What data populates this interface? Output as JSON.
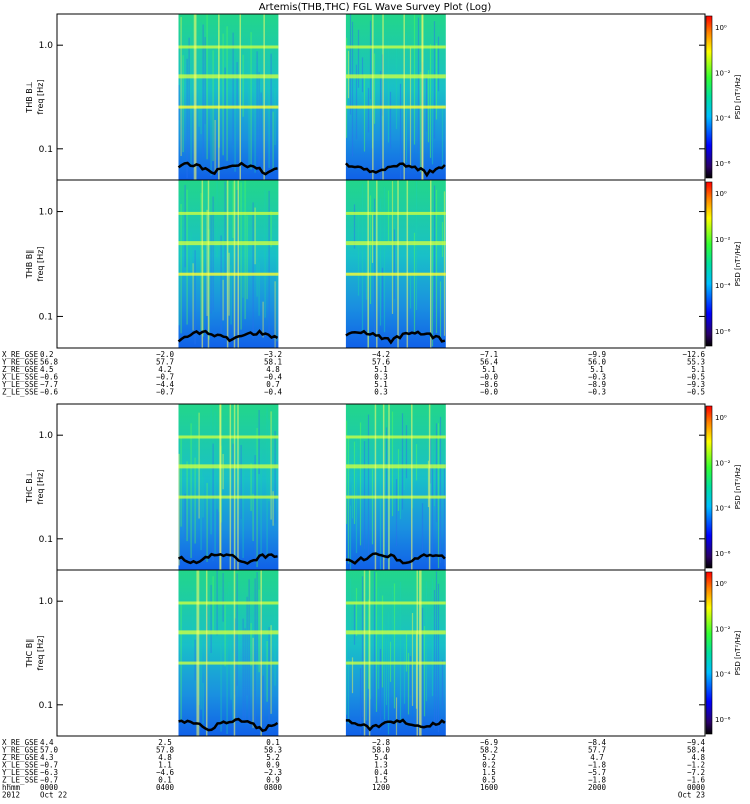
{
  "chart_data": {
    "type": "heatmap",
    "title": "Artemis(THB,THC) FGL Wave Survey Plot (Log)",
    "x_range_hhmm": [
      0,
      2400
    ],
    "panels": [
      {
        "name": "THB B⊥",
        "ylabel": "freq [Hz]",
        "cblabel": "PSD [nT²/Hz]",
        "ylim": [
          0.05,
          2.0
        ],
        "yscale": "log"
      },
      {
        "name": "THB B∥",
        "ylabel": "freq [Hz]",
        "cblabel": "PSD [nT²/Hz]",
        "ylim": [
          0.05,
          2.0
        ],
        "yscale": "log"
      },
      {
        "name": "THC B⊥",
        "ylabel": "freq [Hz]",
        "cblabel": "PSD [nT²/Hz]",
        "ylim": [
          0.05,
          2.0
        ],
        "yscale": "log"
      },
      {
        "name": "THC B∥",
        "ylabel": "freq [Hz]",
        "cblabel": "PSD [nT²/Hz]",
        "ylim": [
          0.05,
          2.0
        ],
        "yscale": "log"
      }
    ],
    "y_ticks": [
      "1.0",
      "0.1"
    ],
    "colorbar_ticks": [
      "10⁰",
      "10⁻²",
      "10⁻⁴",
      "10⁻⁶"
    ],
    "data_intervals_hours": [
      [
        4.5,
        8.2
      ],
      [
        10.7,
        14.4
      ]
    ],
    "thb_table": {
      "rows": [
        {
          "label": "X_RE_GSE",
          "values": [
            "0.2",
            "−2.0",
            "−3.2",
            "−4.2",
            "−7.1",
            "−9.9",
            "−12.6"
          ]
        },
        {
          "label": "Y_RE_GSE",
          "values": [
            "56.8",
            "57.7",
            "58.1",
            "57.6",
            "56.4",
            "56.0",
            "55.3"
          ]
        },
        {
          "label": "Z_RE_GSE",
          "values": [
            "4.5",
            "4.2",
            "4.8",
            "5.1",
            "5.1",
            "5.1",
            "5.1"
          ]
        },
        {
          "label": "X_LE_SSE",
          "values": [
            "−0.6",
            "−0.7",
            "−0.4",
            "0.3",
            "−0.0",
            "−0.3",
            "−0.5"
          ]
        },
        {
          "label": "Y_LE_SSE",
          "values": [
            "−7.7",
            "−4.4",
            "0.7",
            "5.1",
            "−8.6",
            "−8.9",
            "−9.3"
          ]
        },
        {
          "label": "Z_LE_SSE",
          "values": [
            "−0.6",
            "−0.7",
            "−0.4",
            "0.3",
            "−0.0",
            "−0.3",
            "−0.5"
          ]
        }
      ]
    },
    "thc_table": {
      "rows": [
        {
          "label": "X_RE_GSE",
          "values": [
            "4.4",
            "2.5",
            "0.1",
            "−2.8",
            "−6.9",
            "−8.4",
            "−9.4"
          ]
        },
        {
          "label": "Y_RE_GSE",
          "values": [
            "57.0",
            "57.8",
            "58.3",
            "58.0",
            "58.2",
            "57.7",
            "58.4"
          ]
        },
        {
          "label": "Z_RE_GSE",
          "values": [
            "4.3",
            "4.8",
            "5.2",
            "5.4",
            "5.2",
            "4.7",
            "4.8"
          ]
        },
        {
          "label": "X_LE_SSE",
          "values": [
            "−0.7",
            "1.1",
            "0.9",
            "1.3",
            "0.2",
            "−1.8",
            "−1.2"
          ]
        },
        {
          "label": "Y_LE_SSE",
          "values": [
            "−6.3",
            "−4.6",
            "−2.3",
            "0.4",
            "1.5",
            "−5.7",
            "−7.2"
          ]
        },
        {
          "label": "Z_LE_SSE",
          "values": [
            "−0.7",
            "0.1",
            "0.9",
            "1.5",
            "0.5",
            "−1.8",
            "−1.6"
          ]
        }
      ]
    },
    "time_rows": [
      {
        "label": "hhmm",
        "values": [
          "0000",
          "0400",
          "0800",
          "1200",
          "1600",
          "2000",
          "0000"
        ]
      },
      {
        "label": "2012",
        "values": [
          "Oct 22",
          "",
          "",
          "",
          "",
          "",
          "Oct 23"
        ]
      }
    ]
  }
}
